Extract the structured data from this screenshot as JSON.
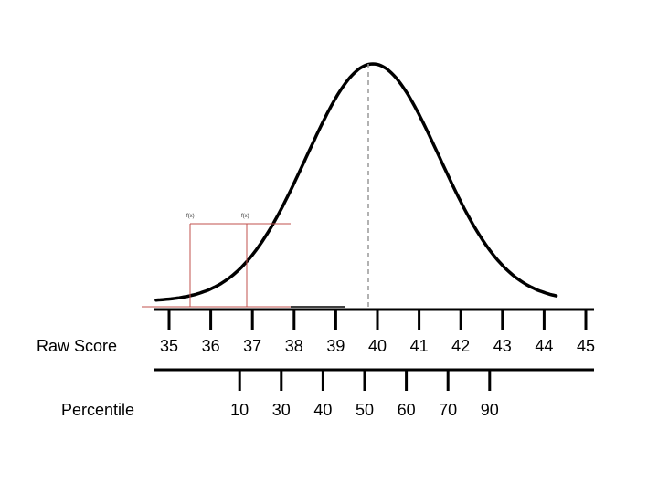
{
  "labels": {
    "raw_score": "Raw Score",
    "percentile": "Percentile",
    "marker_left": "f(x)",
    "marker_right": "f(x)"
  },
  "raw_score_ticks": [
    "35",
    "36",
    "37",
    "38",
    "39",
    "40",
    "41",
    "42",
    "43",
    "44",
    "45"
  ],
  "percentile_ticks": [
    {
      "label": "10",
      "raw": 37
    },
    {
      "label": "30",
      "raw": 38
    },
    {
      "label": "40",
      "raw": 39
    },
    {
      "label": "50",
      "raw": 40
    },
    {
      "label": "60",
      "raw": 41
    },
    {
      "label": "70",
      "raw": 42
    },
    {
      "label": "90",
      "raw": 43
    }
  ],
  "colors": {
    "curve": "#000000",
    "axis": "#000000",
    "mean_line": "#999999",
    "red_lines": "#c0504d"
  }
}
